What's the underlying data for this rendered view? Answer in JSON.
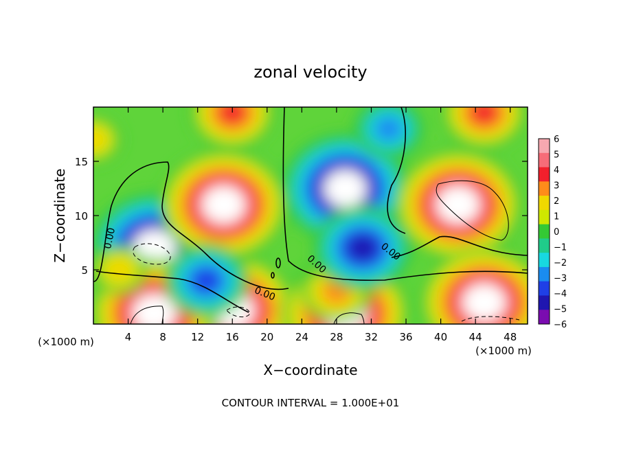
{
  "chart_data": {
    "type": "heatmap",
    "title": "zonal velocity",
    "xlabel": "X−coordinate",
    "ylabel": "Z−coordinate",
    "x_unit_label": "(×1000 m)",
    "z_unit_label": "(×1000 m)",
    "footer": "CONTOUR INTERVAL = 1.000E+01",
    "xlim": [
      0,
      50
    ],
    "ylim": [
      0,
      20
    ],
    "x_ticks": [
      "4",
      "8",
      "12",
      "16",
      "20",
      "24",
      "28",
      "32",
      "36",
      "40",
      "44",
      "48"
    ],
    "y_ticks": [
      "5",
      "10",
      "15"
    ],
    "colorbar": {
      "levels": [
        "6",
        "5",
        "4",
        "3",
        "2",
        "1",
        "0",
        "−1",
        "−2",
        "−3",
        "−4",
        "−5",
        "−6"
      ],
      "colors": [
        "#f7a8b0",
        "#f76c78",
        "#f2202c",
        "#ff8c1a",
        "#f0d800",
        "#cfe800",
        "#34c934",
        "#20cc8a",
        "#18d8e0",
        "#1a8cf0",
        "#1f3fe6",
        "#1f16b0",
        "#7a0cb0"
      ],
      "high_color": "#ffffff"
    },
    "contour_labels": [
      "0.00",
      "0.00",
      "0.00",
      "0.00"
    ],
    "features": [
      {
        "x": 7,
        "z": 7,
        "value": -7
      },
      {
        "x": 15,
        "z": 11,
        "value": 7
      },
      {
        "x": 29,
        "z": 12.5,
        "value": -7
      },
      {
        "x": 42,
        "z": 11,
        "value": 7
      },
      {
        "x": 45,
        "z": 2,
        "value": 7
      },
      {
        "x": 16,
        "z": 1.3,
        "value": 7
      },
      {
        "x": 29,
        "z": 1,
        "value": 7
      },
      {
        "x": 7,
        "z": 1,
        "value": 7
      },
      {
        "x": 34,
        "z": 18,
        "value": -3
      },
      {
        "x": 16,
        "z": 19.5,
        "value": 4
      },
      {
        "x": 45,
        "z": 19.5,
        "value": 4
      },
      {
        "x": 0,
        "z": 17,
        "value": 2
      },
      {
        "x": 28,
        "z": 3,
        "value": 3
      },
      {
        "x": 3,
        "z": 5,
        "value": 2
      },
      {
        "x": 31,
        "z": 7,
        "value": -5
      },
      {
        "x": 13,
        "z": 4,
        "value": -4
      }
    ]
  }
}
